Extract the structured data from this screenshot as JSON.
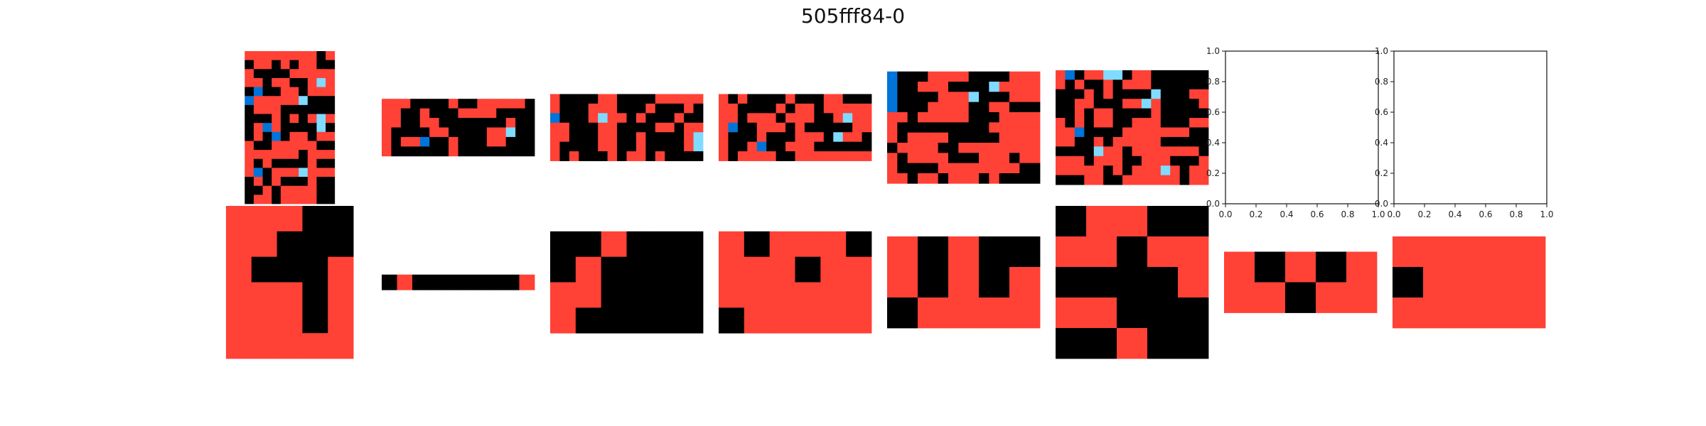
{
  "title": "505fff84-0",
  "colors": {
    "0": "#000000",
    "1": "#0074D9",
    "2": "#FF4136",
    "8": "#7FDBFF"
  },
  "input_grids": [
    [
      "2222222202",
      "0220202200",
      "2000022222",
      "2202200282",
      "0100220222",
      "1222228000",
      "0222000000",
      "0002020282",
      "0212000080",
      "0201022022",
      "2002222200",
      "2222220222",
      "2020000200",
      "2102228222",
      "0202000200",
      "0020222200",
      "0220222200"
    ],
    [
      "2220000200222220",
      "2200200022220000",
      "2200220000000200",
      "2000022000022800",
      "2022100200022000",
      "2000000200000000"
    ],
    [
      "2000022000022222",
      "2000222000200020",
      "1000282202000200",
      "2200022000022022",
      "2200022002000028",
      "2000022002000028",
      "2020002022020000"
    ],
    [
      "2020000200022000",
      "2200002022022222",
      "2202220222002822",
      "2100222020000022",
      "2000200022208220",
      "2002100222000000",
      "2022220022222222"
    ],
    [
      "100022220000222",
      "100222000082222",
      "100002228000222",
      "100022220022000",
      "2202222200022222",
      "2000000000222222",
      "2022220000022222",
      "0222200222222222",
      "2022220002220222",
      "2000022222222000",
      "2202202220200000"
    ],
    [
      "2102288022000000",
      "2020020222000000",
      "0002020000800022",
      "0022000228200002",
      "0020220000200000",
      "2020220022200022",
      "2210000222222200",
      "2200202222200000",
      "0000822022222220",
      "2220222002220002",
      "2222202022282022",
      "0002200222222022"
    ]
  ],
  "output_grids": [
    [
      "22200",
      "22000",
      "20002",
      "22202",
      "22202",
      "22222"
    ],
    [
      "0200000002"
    ],
    [
      "002000",
      "020000",
      "220000",
      "200000"
    ],
    [
      "202220",
      "222022",
      "222222",
      "022222"
    ],
    [
      "20200",
      "20202",
      "02222"
    ],
    [
      "02200",
      "22022",
      "00002",
      "22000",
      "00200"
    ],
    [
      "20202",
      "22022"
    ],
    [
      "22222",
      "02222",
      "22222"
    ]
  ],
  "empty_axes_ticks": [
    "0.0",
    "0.2",
    "0.4",
    "0.6",
    "0.8",
    "1.0"
  ]
}
